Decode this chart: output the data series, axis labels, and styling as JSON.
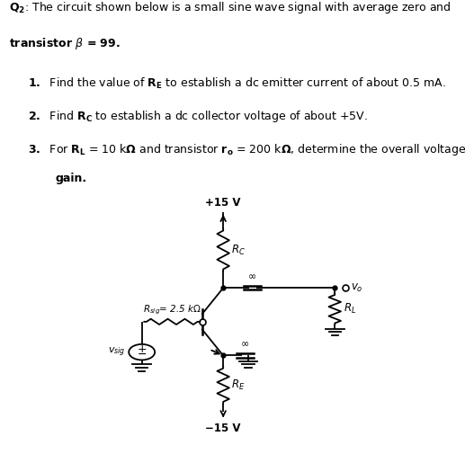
{
  "bg_color": "#ffffff",
  "text_color": "#000000",
  "line_color": "#000000",
  "title_line1": "Q₂: The circuit shown below is a small sine wave signal with average zero and",
  "title_line2": "transistor β = 99.",
  "item1": "1.  Find the value of Rᴇ to establish a dc emitter current of about 0.5 mA.",
  "item2": "2.  Find Rᴄ to establish a dc collector voltage of about +5V.",
  "item3a": "3.  For Rᴸ = 10 kΩ and transistor rₒ = 200 kΩ, determine the overall voltage",
  "item3b": "      gain.",
  "vcc": "+15 V",
  "vee": "−15 V",
  "rc_label": "R_C",
  "re_label": "R_E",
  "rl_label": "R_L",
  "rsig_label": "R_{sig}",
  "rsig_val": "= 2.5 kΩ",
  "vsig_label": "v_{sig}",
  "vo_label": "v_o",
  "inf_symbol": "∞"
}
